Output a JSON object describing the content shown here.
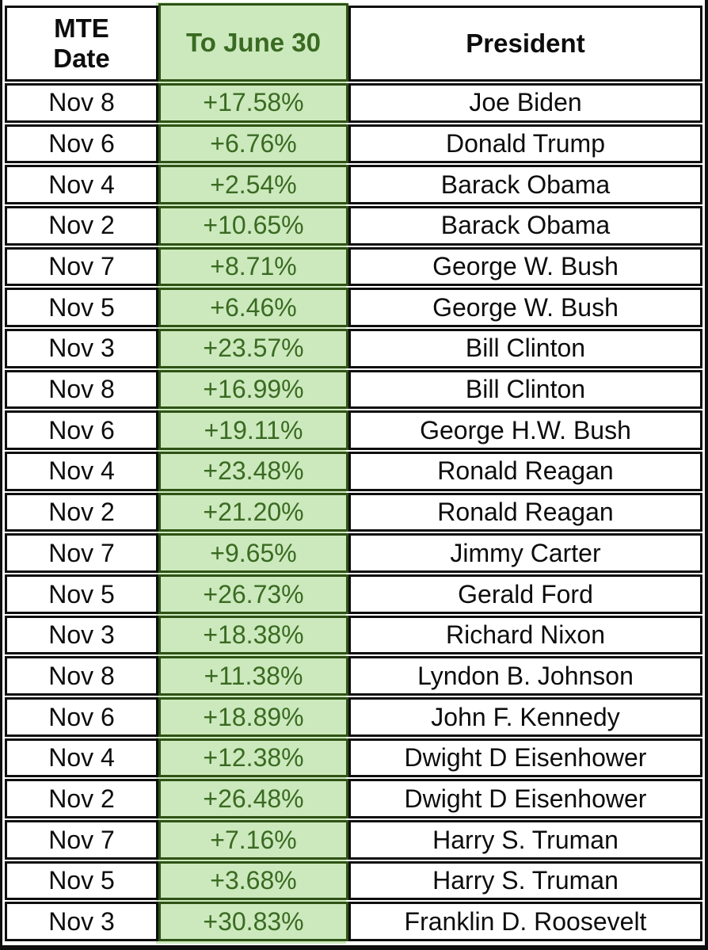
{
  "display": {
    "header_date": "MTE\nDate",
    "header_pct": "To June 30",
    "header_president": "President"
  },
  "colors": {
    "green_background": "#cce9bd",
    "green_border": "#2e5215",
    "green_text": "#3a6a22",
    "grid_line": "#0e0e0e",
    "text": "#0d0d0d"
  },
  "chart_data": {
    "type": "table",
    "columns": [
      "MTE Date",
      "To June 30",
      "President"
    ],
    "rows": [
      [
        "Nov 8",
        "+17.58%",
        "Joe Biden"
      ],
      [
        "Nov 6",
        "+6.76%",
        "Donald Trump"
      ],
      [
        "Nov 4",
        "+2.54%",
        "Barack Obama"
      ],
      [
        "Nov 2",
        "+10.65%",
        "Barack Obama"
      ],
      [
        "Nov 7",
        "+8.71%",
        "George W. Bush"
      ],
      [
        "Nov 5",
        "+6.46%",
        "George W. Bush"
      ],
      [
        "Nov 3",
        "+23.57%",
        "Bill Clinton"
      ],
      [
        "Nov 8",
        "+16.99%",
        "Bill Clinton"
      ],
      [
        "Nov 6",
        "+19.11%",
        "George H.W. Bush"
      ],
      [
        "Nov 4",
        "+23.48%",
        "Ronald Reagan"
      ],
      [
        "Nov 2",
        "+21.20%",
        "Ronald Reagan"
      ],
      [
        "Nov 7",
        "+9.65%",
        "Jimmy Carter"
      ],
      [
        "Nov 5",
        "+26.73%",
        "Gerald Ford"
      ],
      [
        "Nov 3",
        "+18.38%",
        "Richard Nixon"
      ],
      [
        "Nov 8",
        "+11.38%",
        "Lyndon B. Johnson"
      ],
      [
        "Nov 6",
        "+18.89%",
        "John F. Kennedy"
      ],
      [
        "Nov 4",
        "+12.38%",
        "Dwight D Eisenhower"
      ],
      [
        "Nov 2",
        "+26.48%",
        "Dwight D Eisenhower"
      ],
      [
        "Nov 7",
        "+7.16%",
        "Harry S. Truman"
      ],
      [
        "Nov 5",
        "+3.68%",
        "Harry S. Truman"
      ],
      [
        "Nov 3",
        "+30.83%",
        "Franklin D. Roosevelt"
      ]
    ]
  }
}
